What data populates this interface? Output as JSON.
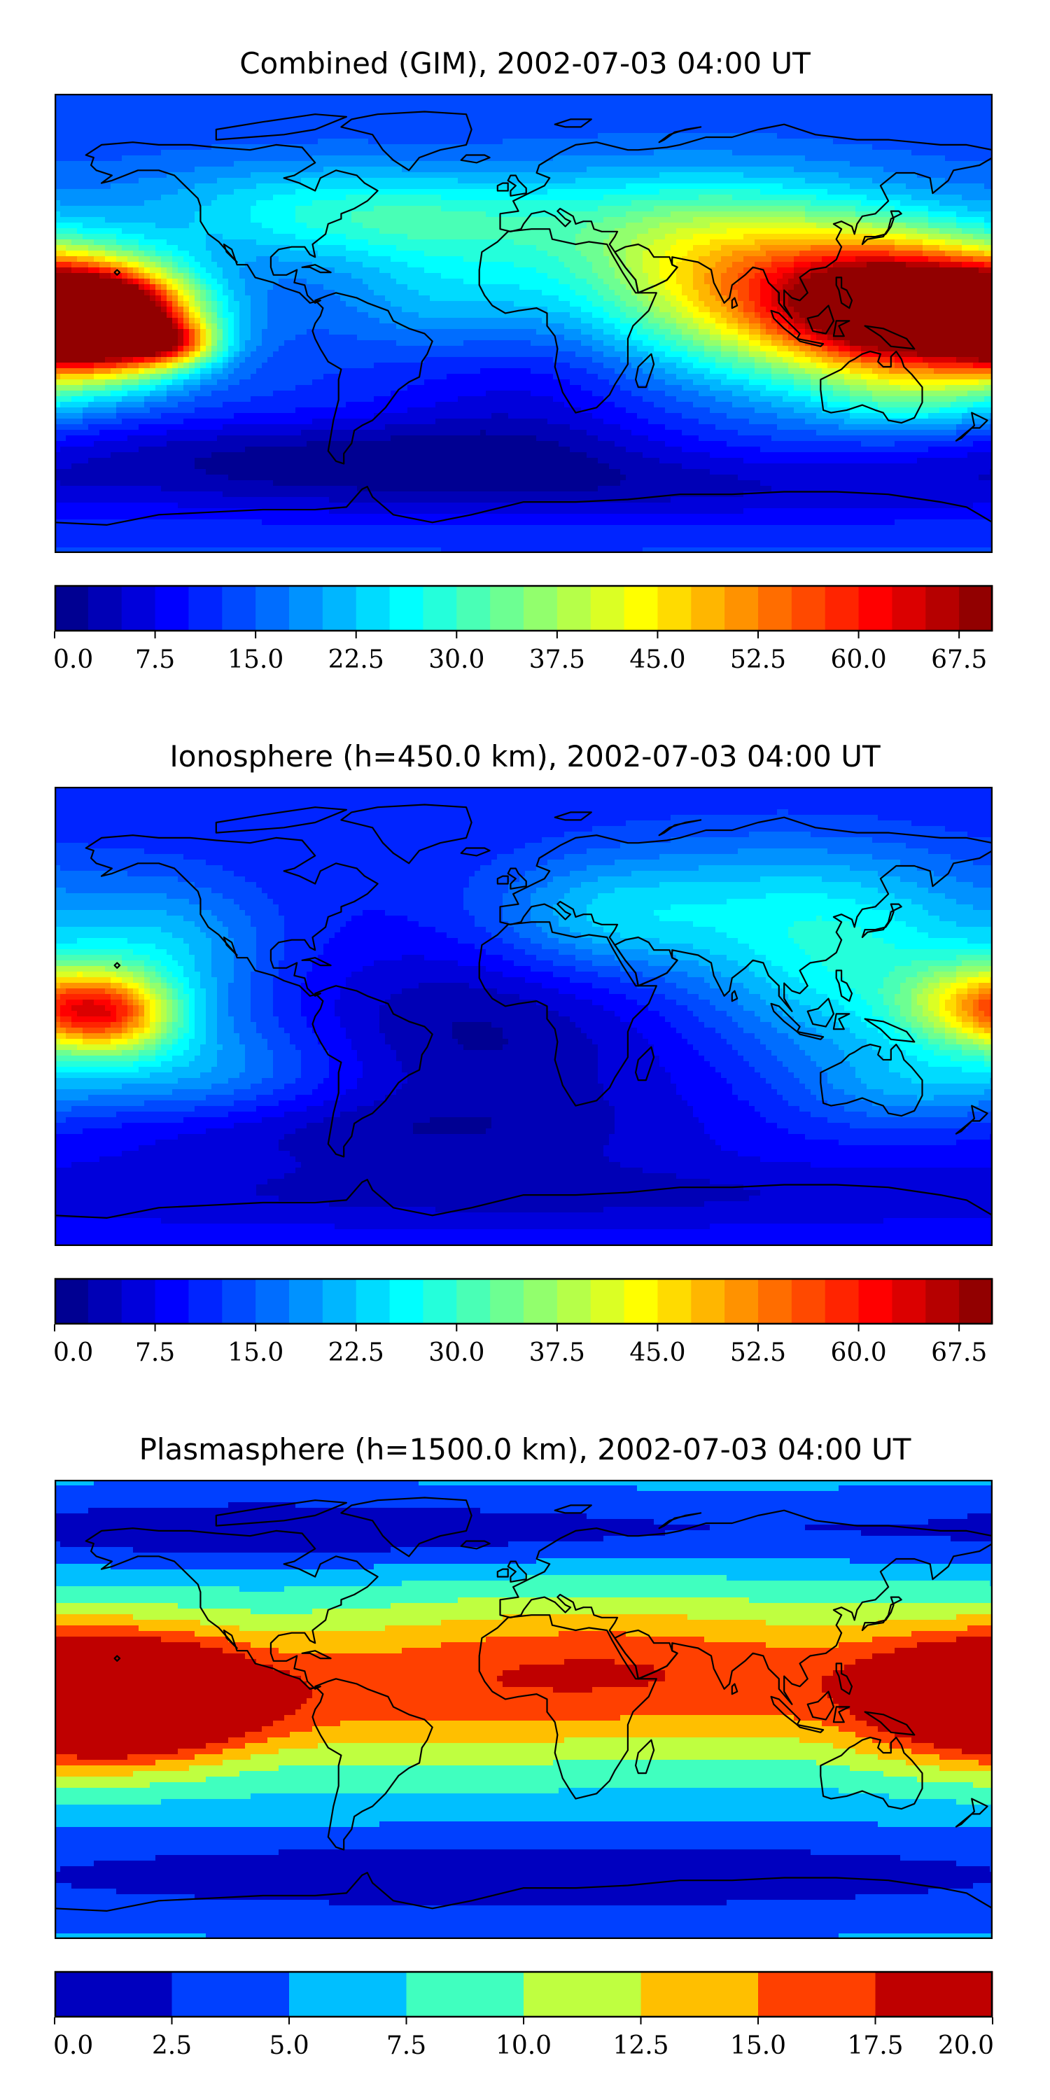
{
  "panels": [
    {
      "title": "Combined (GIM), 2002-07-03 04:00 UT",
      "colorbar": {
        "min": 0.0,
        "max": 70.0,
        "levels": 28,
        "ticks": [
          "0.0",
          "7.5",
          "15.0",
          "22.5",
          "30.0",
          "37.5",
          "45.0",
          "52.5",
          "60.0",
          "67.5"
        ],
        "tick_values": [
          0,
          7.5,
          15,
          22.5,
          30,
          37.5,
          45,
          52.5,
          60,
          67.5
        ]
      }
    },
    {
      "title": "Ionosphere  (h=450.0 km), 2002-07-03 04:00 UT",
      "colorbar": {
        "min": 0.0,
        "max": 70.0,
        "levels": 28,
        "ticks": [
          "0.0",
          "7.5",
          "15.0",
          "22.5",
          "30.0",
          "37.5",
          "45.0",
          "52.5",
          "60.0",
          "67.5"
        ],
        "tick_values": [
          0,
          7.5,
          15,
          22.5,
          30,
          37.5,
          45,
          52.5,
          60,
          67.5
        ]
      }
    },
    {
      "title": "Plasmasphere (h=1500.0 km), 2002-07-03 04:00 UT",
      "colorbar": {
        "min": 0.0,
        "max": 20.0,
        "levels": 8,
        "ticks": [
          "0.0",
          "2.5",
          "5.0",
          "7.5",
          "10.0",
          "12.5",
          "15.0",
          "17.5",
          "20.0"
        ],
        "tick_values": [
          0,
          2.5,
          5,
          7.5,
          10,
          12.5,
          15,
          17.5,
          20
        ]
      }
    }
  ],
  "colormap": "jet",
  "colors": {
    "coastline": "#000000",
    "frame": "#000000"
  }
}
